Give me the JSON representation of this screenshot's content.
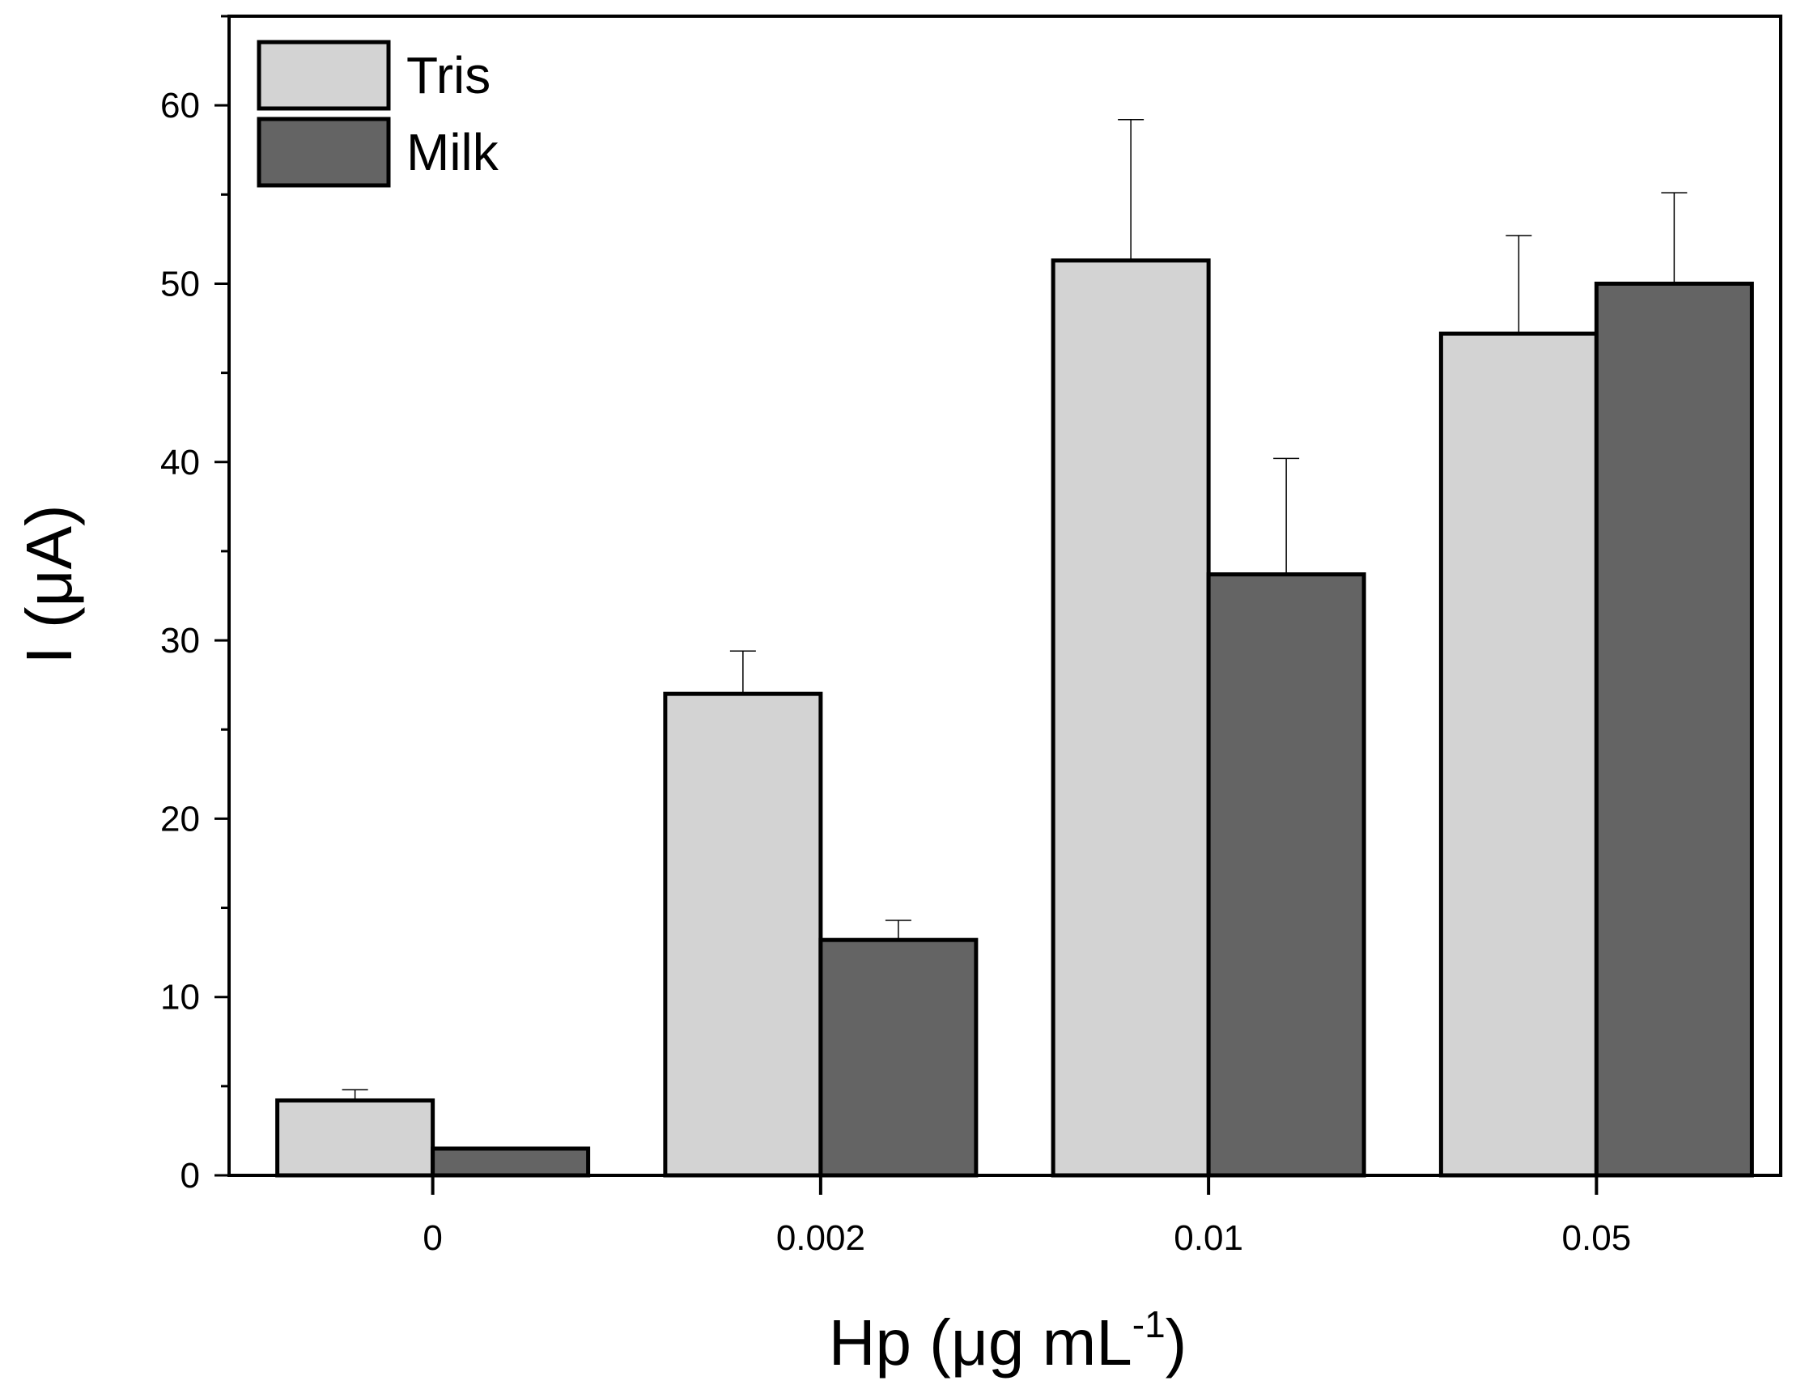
{
  "chart_data": {
    "type": "bar",
    "categories": [
      "0",
      "0.002",
      "0.01",
      "0.05"
    ],
    "series": [
      {
        "name": "Tris",
        "values": [
          4.2,
          27.0,
          51.3,
          47.2
        ],
        "errors": [
          0.6,
          2.4,
          7.9,
          5.5
        ],
        "color": "#d3d3d3"
      },
      {
        "name": "Milk",
        "values": [
          1.5,
          13.2,
          33.7,
          50.0
        ],
        "errors": [
          0.0,
          1.1,
          6.5,
          5.1
        ],
        "color": "#646464"
      }
    ],
    "xlabel": {
      "main": "Hp (μg mL",
      "sup": "-1",
      "end": ")"
    },
    "ylabel": "I (μA)",
    "ylim": [
      0,
      65
    ],
    "yticks": [
      0,
      10,
      20,
      30,
      40,
      50,
      60
    ],
    "yminor_step": 5,
    "grid": false,
    "legend_position": "top-left"
  }
}
